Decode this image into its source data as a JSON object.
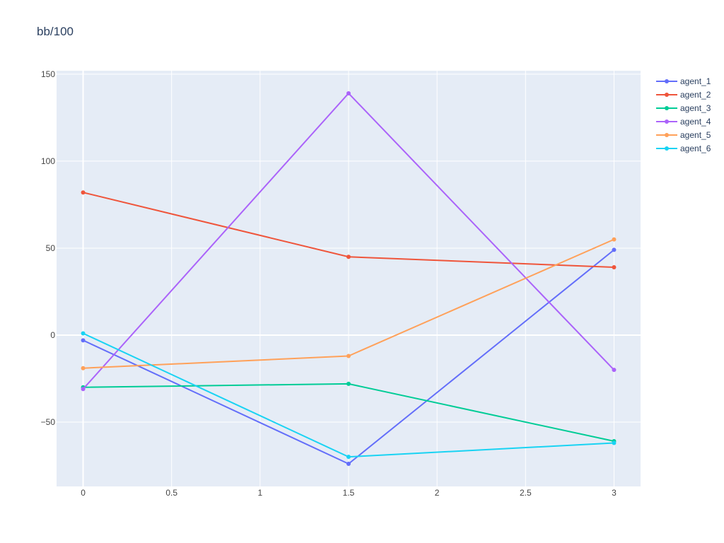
{
  "chart_data": {
    "type": "line",
    "title": "bb/100",
    "xlabel": "",
    "ylabel": "",
    "xlim": [
      -0.15,
      3.15
    ],
    "ylim": [
      -87,
      152
    ],
    "x_ticks": [
      0,
      0.5,
      1,
      1.5,
      2,
      2.5,
      3
    ],
    "x_tick_labels": [
      "0",
      "0.5",
      "1",
      "1.5",
      "2",
      "2.5",
      "3"
    ],
    "y_ticks": [
      150,
      100,
      50,
      0,
      -50
    ],
    "y_tick_labels": [
      "150",
      "100",
      "50",
      "0",
      "−50"
    ],
    "grid": true,
    "legend_position": "top-right",
    "x": [
      0,
      1.5,
      3
    ],
    "series": [
      {
        "name": "agent_1",
        "color": "#636efa",
        "values": [
          -3,
          -74,
          49
        ]
      },
      {
        "name": "agent_2",
        "color": "#ef553b",
        "values": [
          82,
          45,
          39
        ]
      },
      {
        "name": "agent_3",
        "color": "#00cc96",
        "values": [
          -30,
          -28,
          -61
        ]
      },
      {
        "name": "agent_4",
        "color": "#ab63fa",
        "values": [
          -31,
          139,
          -20
        ]
      },
      {
        "name": "agent_5",
        "color": "#ffa15a",
        "values": [
          -19,
          -12,
          55
        ]
      },
      {
        "name": "agent_6",
        "color": "#19d3f3",
        "values": [
          1,
          -70,
          -62
        ]
      }
    ]
  },
  "colors": {
    "plot_background": "#e5ecf6",
    "grid": "#ffffff",
    "title": "#2a3f5f",
    "tick": "#444444"
  }
}
